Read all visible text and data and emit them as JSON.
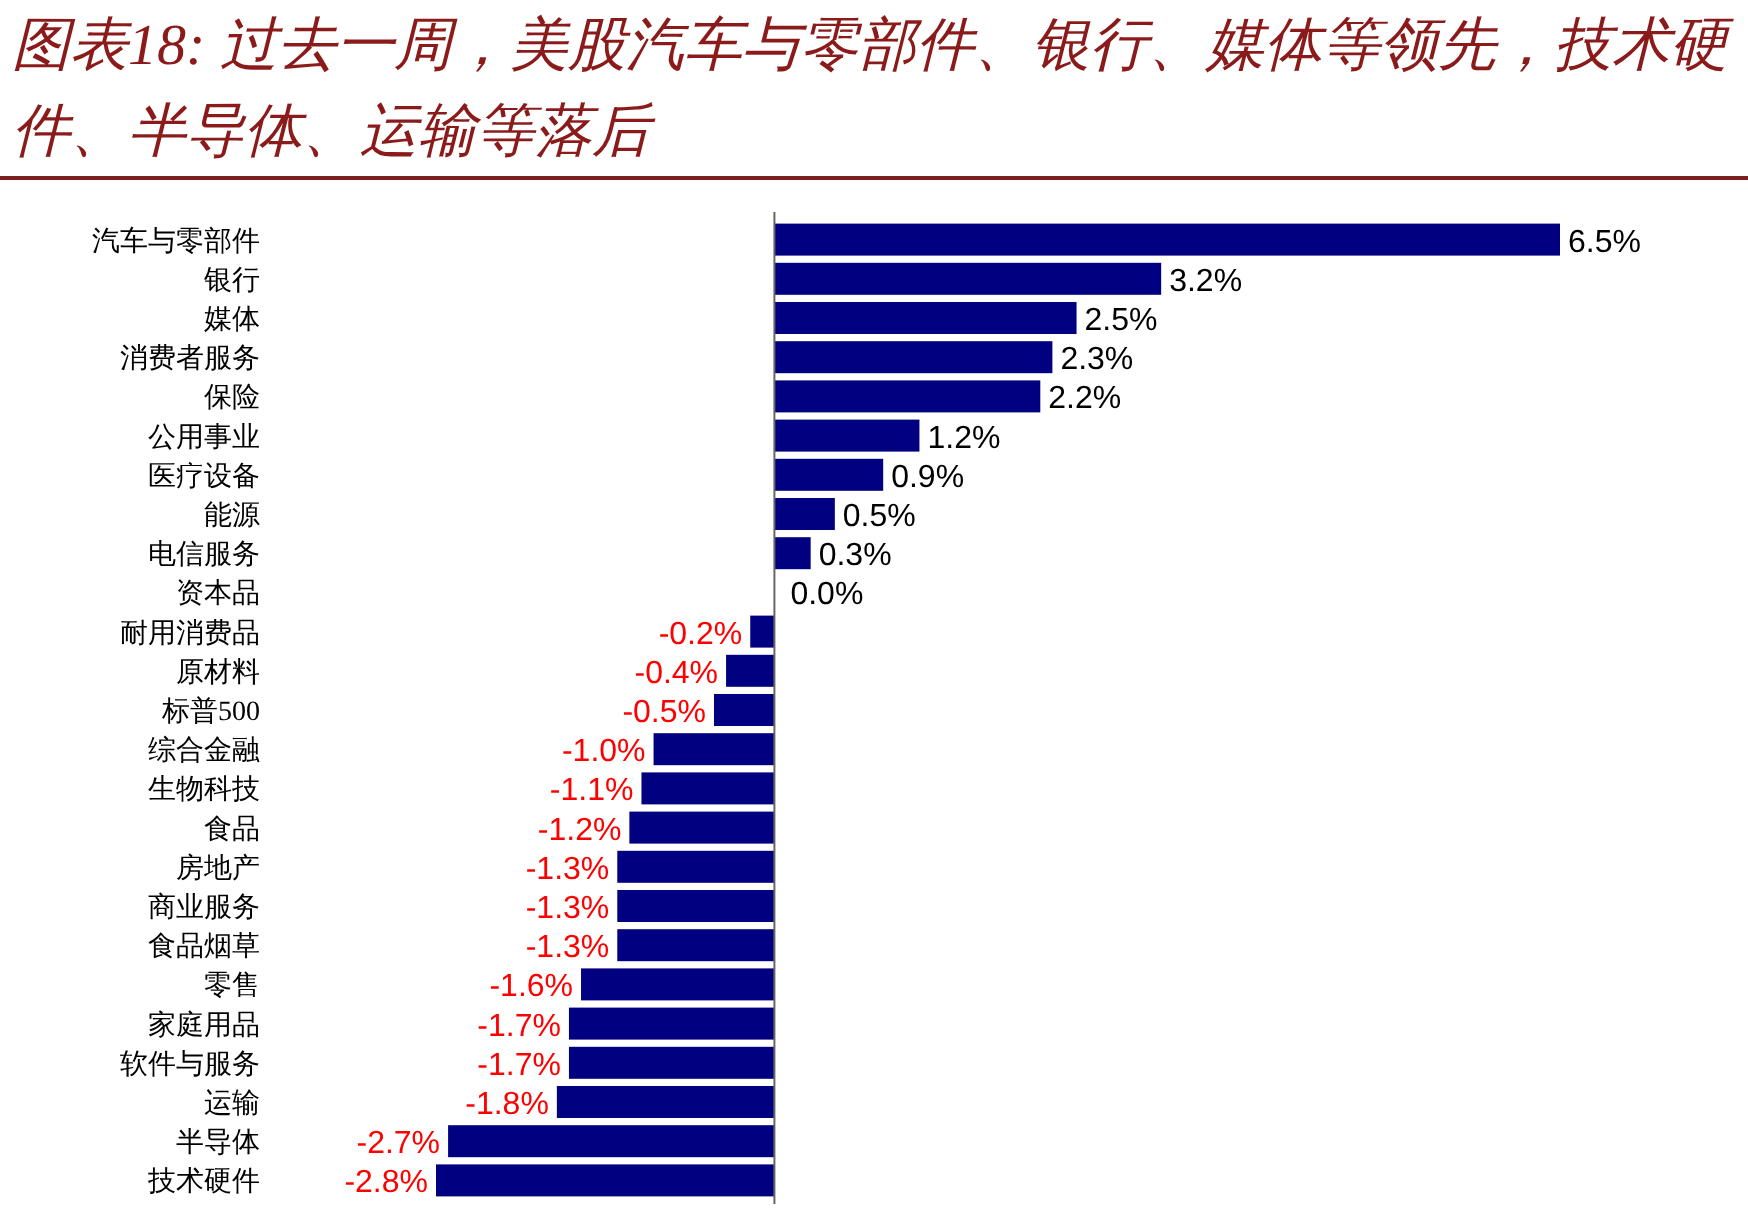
{
  "chart_data": {
    "type": "bar",
    "orientation": "horizontal",
    "title": "图表18: 过去一周，美股汽车与零部件、银行、媒体等领先，技术硬件、半导体、运输等落后",
    "categories": [
      "汽车与零部件",
      "银行",
      "媒体",
      "消费者服务",
      "保险",
      "公用事业",
      "医疗设备",
      "能源",
      "电信服务",
      "资本品",
      "耐用消费品",
      "原材料",
      "标普500",
      "综合金融",
      "生物科技",
      "食品",
      "房地产",
      "商业服务",
      "食品烟草",
      "零售",
      "家庭用品",
      "软件与服务",
      "运输",
      "半导体",
      "技术硬件"
    ],
    "values": [
      6.5,
      3.2,
      2.5,
      2.3,
      2.2,
      1.2,
      0.9,
      0.5,
      0.3,
      0.0,
      -0.2,
      -0.4,
      -0.5,
      -1.0,
      -1.1,
      -1.2,
      -1.3,
      -1.3,
      -1.3,
      -1.6,
      -1.7,
      -1.7,
      -1.8,
      -2.7,
      -2.8
    ],
    "value_labels": [
      "6.5%",
      "3.2%",
      "2.5%",
      "2.3%",
      "2.2%",
      "1.2%",
      "0.9%",
      "0.5%",
      "0.3%",
      "0.0%",
      "-0.2%",
      "-0.4%",
      "-0.5%",
      "-1.0%",
      "-1.1%",
      "-1.2%",
      "-1.3%",
      "-1.3%",
      "-1.3%",
      "-1.6%",
      "-1.7%",
      "-1.7%",
      "-1.8%",
      "-2.7%",
      "-2.8%"
    ],
    "color": "#000080"
  }
}
